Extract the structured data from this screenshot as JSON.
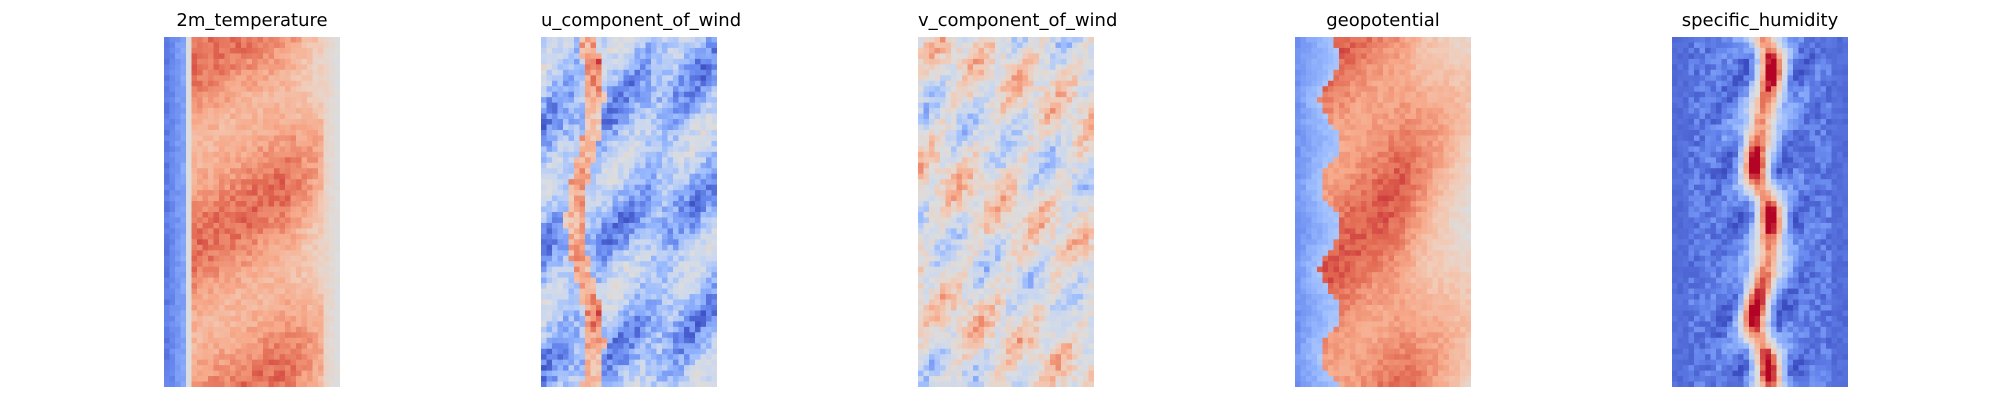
{
  "figure": {
    "background": "#ffffff",
    "colormap": "coolwarm",
    "colormap_stops": [
      "#3b4cc0",
      "#6788ee",
      "#9abbff",
      "#c9d7f0",
      "#dddddd",
      "#f2cbb7",
      "#f7a889",
      "#e26952",
      "#b40426"
    ]
  },
  "chart_data": [
    {
      "type": "heatmap",
      "title": "2m_temperature",
      "axes": "off",
      "grid": false,
      "pattern": "cold band on left edge, warm core across middle, cooling toward right edge",
      "rows": 64,
      "cols": 32,
      "value_range": [
        0,
        1
      ]
    },
    {
      "type": "heatmap",
      "title": "u_component_of_wind",
      "axes": "off",
      "grid": false,
      "pattern": "mostly blue with wavy warm streaks, strongest near left-center",
      "rows": 64,
      "cols": 32,
      "value_range": [
        0,
        1
      ]
    },
    {
      "type": "heatmap",
      "title": "v_component_of_wind",
      "axes": "off",
      "grid": false,
      "pattern": "near-neutral field with alternating red and blue eddies",
      "rows": 64,
      "cols": 32,
      "value_range": [
        0,
        1
      ]
    },
    {
      "type": "heatmap",
      "title": "geopotential",
      "axes": "off",
      "grid": false,
      "pattern": "blue wavy band on left, broad red core, lighter toward right edge",
      "rows": 64,
      "cols": 32,
      "value_range": [
        0,
        1
      ]
    },
    {
      "type": "heatmap",
      "title": "specific_humidity",
      "axes": "off",
      "grid": false,
      "pattern": "deep blue edges with narrow red central ridge",
      "rows": 64,
      "cols": 32,
      "value_range": [
        0,
        1
      ]
    }
  ]
}
